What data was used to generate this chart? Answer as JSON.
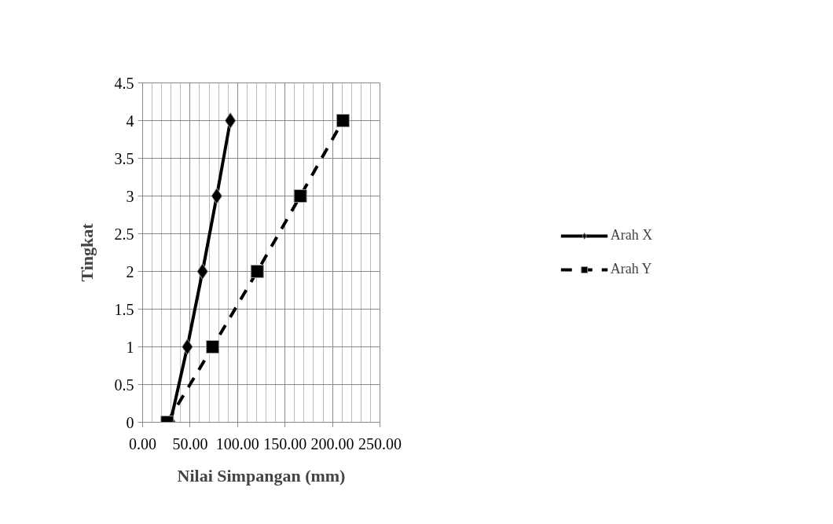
{
  "chart_data": {
    "type": "line",
    "xlabel": "Nilai Simpangan (mm)",
    "ylabel": "Tingkat",
    "xlim": [
      0,
      250
    ],
    "ylim": [
      0,
      4.5
    ],
    "xticks": [
      {
        "value": 0,
        "label": "0.00"
      },
      {
        "value": 50,
        "label": "50.00"
      },
      {
        "value": 100,
        "label": "100.00"
      },
      {
        "value": 150,
        "label": "150.00"
      },
      {
        "value": 200,
        "label": "200.00"
      },
      {
        "value": 250,
        "label": "250.00"
      }
    ],
    "yticks": [
      0,
      0.5,
      1,
      1.5,
      2,
      2.5,
      3,
      3.5,
      4,
      4.5
    ],
    "grid": true,
    "legend": "right",
    "series": [
      {
        "name": "Arah X",
        "color": "#000000",
        "marker": "diamond",
        "line_style": "solid",
        "x": [
          29.3,
          47.1,
          63.1,
          78.1,
          92.4
        ],
        "values": [
          0,
          1,
          2,
          3,
          4
        ]
      },
      {
        "name": "Arah Y",
        "color": "#000000",
        "marker": "square",
        "line_style": "dashed",
        "x": [
          25.9,
          73.8,
          120.7,
          166.1,
          211.0
        ],
        "values": [
          0,
          1,
          2,
          3,
          4
        ]
      }
    ]
  }
}
